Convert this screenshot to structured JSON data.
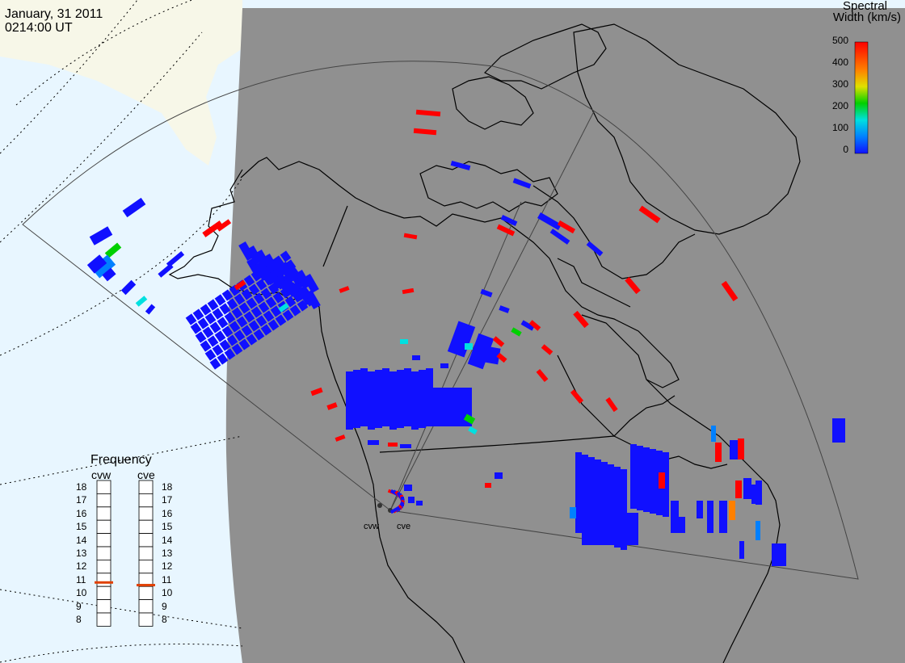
{
  "header": {
    "date": "January, 31 2011",
    "time": "0214:00 UT"
  },
  "colorbar": {
    "title_line1": "Spectral",
    "title_line2": "Width (km/s)",
    "ticks": [
      "500",
      "400",
      "300",
      "200",
      "100",
      "0"
    ],
    "range": [
      0,
      500
    ],
    "colors": [
      "#1010ff",
      "#0080ff",
      "#00e0e0",
      "#00d000",
      "#e0e000",
      "#ff8000",
      "#ff0000"
    ]
  },
  "frequency_panel": {
    "title": "Frequency",
    "radars": [
      {
        "name": "cvw",
        "value_mhz": 10.8
      },
      {
        "name": "cve",
        "value_mhz": 10.6
      }
    ],
    "scale": [
      "18",
      "17",
      "16",
      "15",
      "14",
      "13",
      "12",
      "11",
      "10",
      "9",
      "8"
    ]
  },
  "sites": [
    {
      "name": "cvw"
    },
    {
      "name": "cve"
    }
  ],
  "colors": {
    "night": "#909090",
    "ocean_day": "#e8f6ff",
    "land_day": "#f7f7e8",
    "coast": "#000000",
    "marker": "#e04000"
  }
}
